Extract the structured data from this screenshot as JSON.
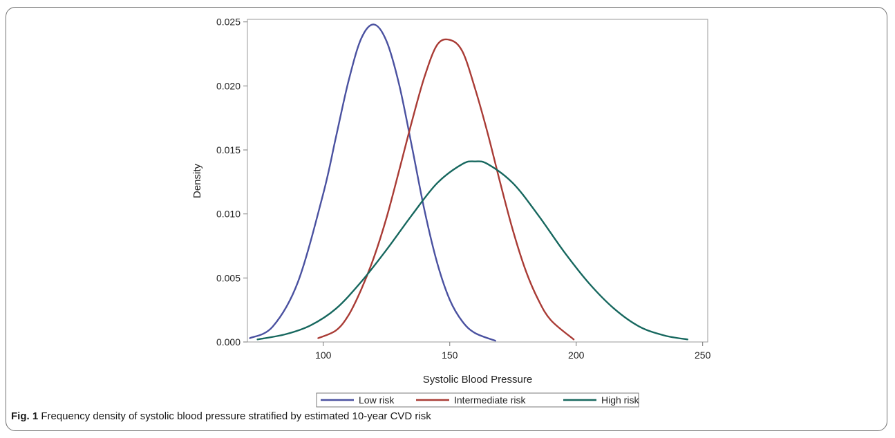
{
  "caption": {
    "label": "Fig. 1",
    "text": "Frequency density of systolic blood pressure stratified by estimated 10-year CVD risk"
  },
  "chart_data": {
    "type": "line",
    "xlabel": "Systolic Blood Pressure",
    "ylabel": "Density",
    "xlim": [
      70,
      252
    ],
    "ylim": [
      0.0,
      0.0252
    ],
    "x_ticks": [
      100,
      150,
      200,
      250
    ],
    "x_tick_labels": [
      "100",
      "150",
      "200",
      "250"
    ],
    "y_ticks": [
      0.0,
      0.005,
      0.01,
      0.015,
      0.02,
      0.025
    ],
    "y_tick_labels": [
      "0.000",
      "0.005",
      "0.010",
      "0.015",
      "0.020",
      "0.025"
    ],
    "grid": false,
    "legend_position": "bottom",
    "series": [
      {
        "name": "Low risk",
        "color": "#4a51a0",
        "x": [
          71,
          80,
          90,
          100,
          105,
          110,
          115,
          120,
          125,
          130,
          135,
          140,
          145,
          150,
          155,
          160,
          168
        ],
        "y": [
          0.0003,
          0.0012,
          0.0047,
          0.0116,
          0.016,
          0.0204,
          0.0237,
          0.0248,
          0.0235,
          0.0201,
          0.0153,
          0.0103,
          0.0062,
          0.0033,
          0.0016,
          0.0007,
          0.0001
        ]
      },
      {
        "name": "Intermediate risk",
        "color": "#a93b35",
        "x": [
          98,
          105,
          110,
          115,
          120,
          125,
          130,
          135,
          140,
          145,
          150,
          155,
          160,
          165,
          170,
          175,
          180,
          185,
          190,
          199
        ],
        "y": [
          0.0003,
          0.0009,
          0.0021,
          0.0041,
          0.0066,
          0.0097,
          0.0134,
          0.0172,
          0.0207,
          0.0232,
          0.0236,
          0.0227,
          0.0198,
          0.0163,
          0.0124,
          0.0087,
          0.0056,
          0.0033,
          0.0017,
          0.0002
        ]
      },
      {
        "name": "High risk",
        "color": "#16675e",
        "x": [
          74,
          85,
          95,
          105,
          115,
          125,
          135,
          145,
          155,
          160,
          165,
          175,
          185,
          195,
          205,
          215,
          225,
          235,
          244
        ],
        "y": [
          0.0002,
          0.0006,
          0.0013,
          0.0026,
          0.0047,
          0.0072,
          0.0099,
          0.0124,
          0.0139,
          0.0141,
          0.0139,
          0.0124,
          0.0099,
          0.0071,
          0.0046,
          0.0026,
          0.0012,
          0.0005,
          0.0002
        ]
      }
    ]
  }
}
